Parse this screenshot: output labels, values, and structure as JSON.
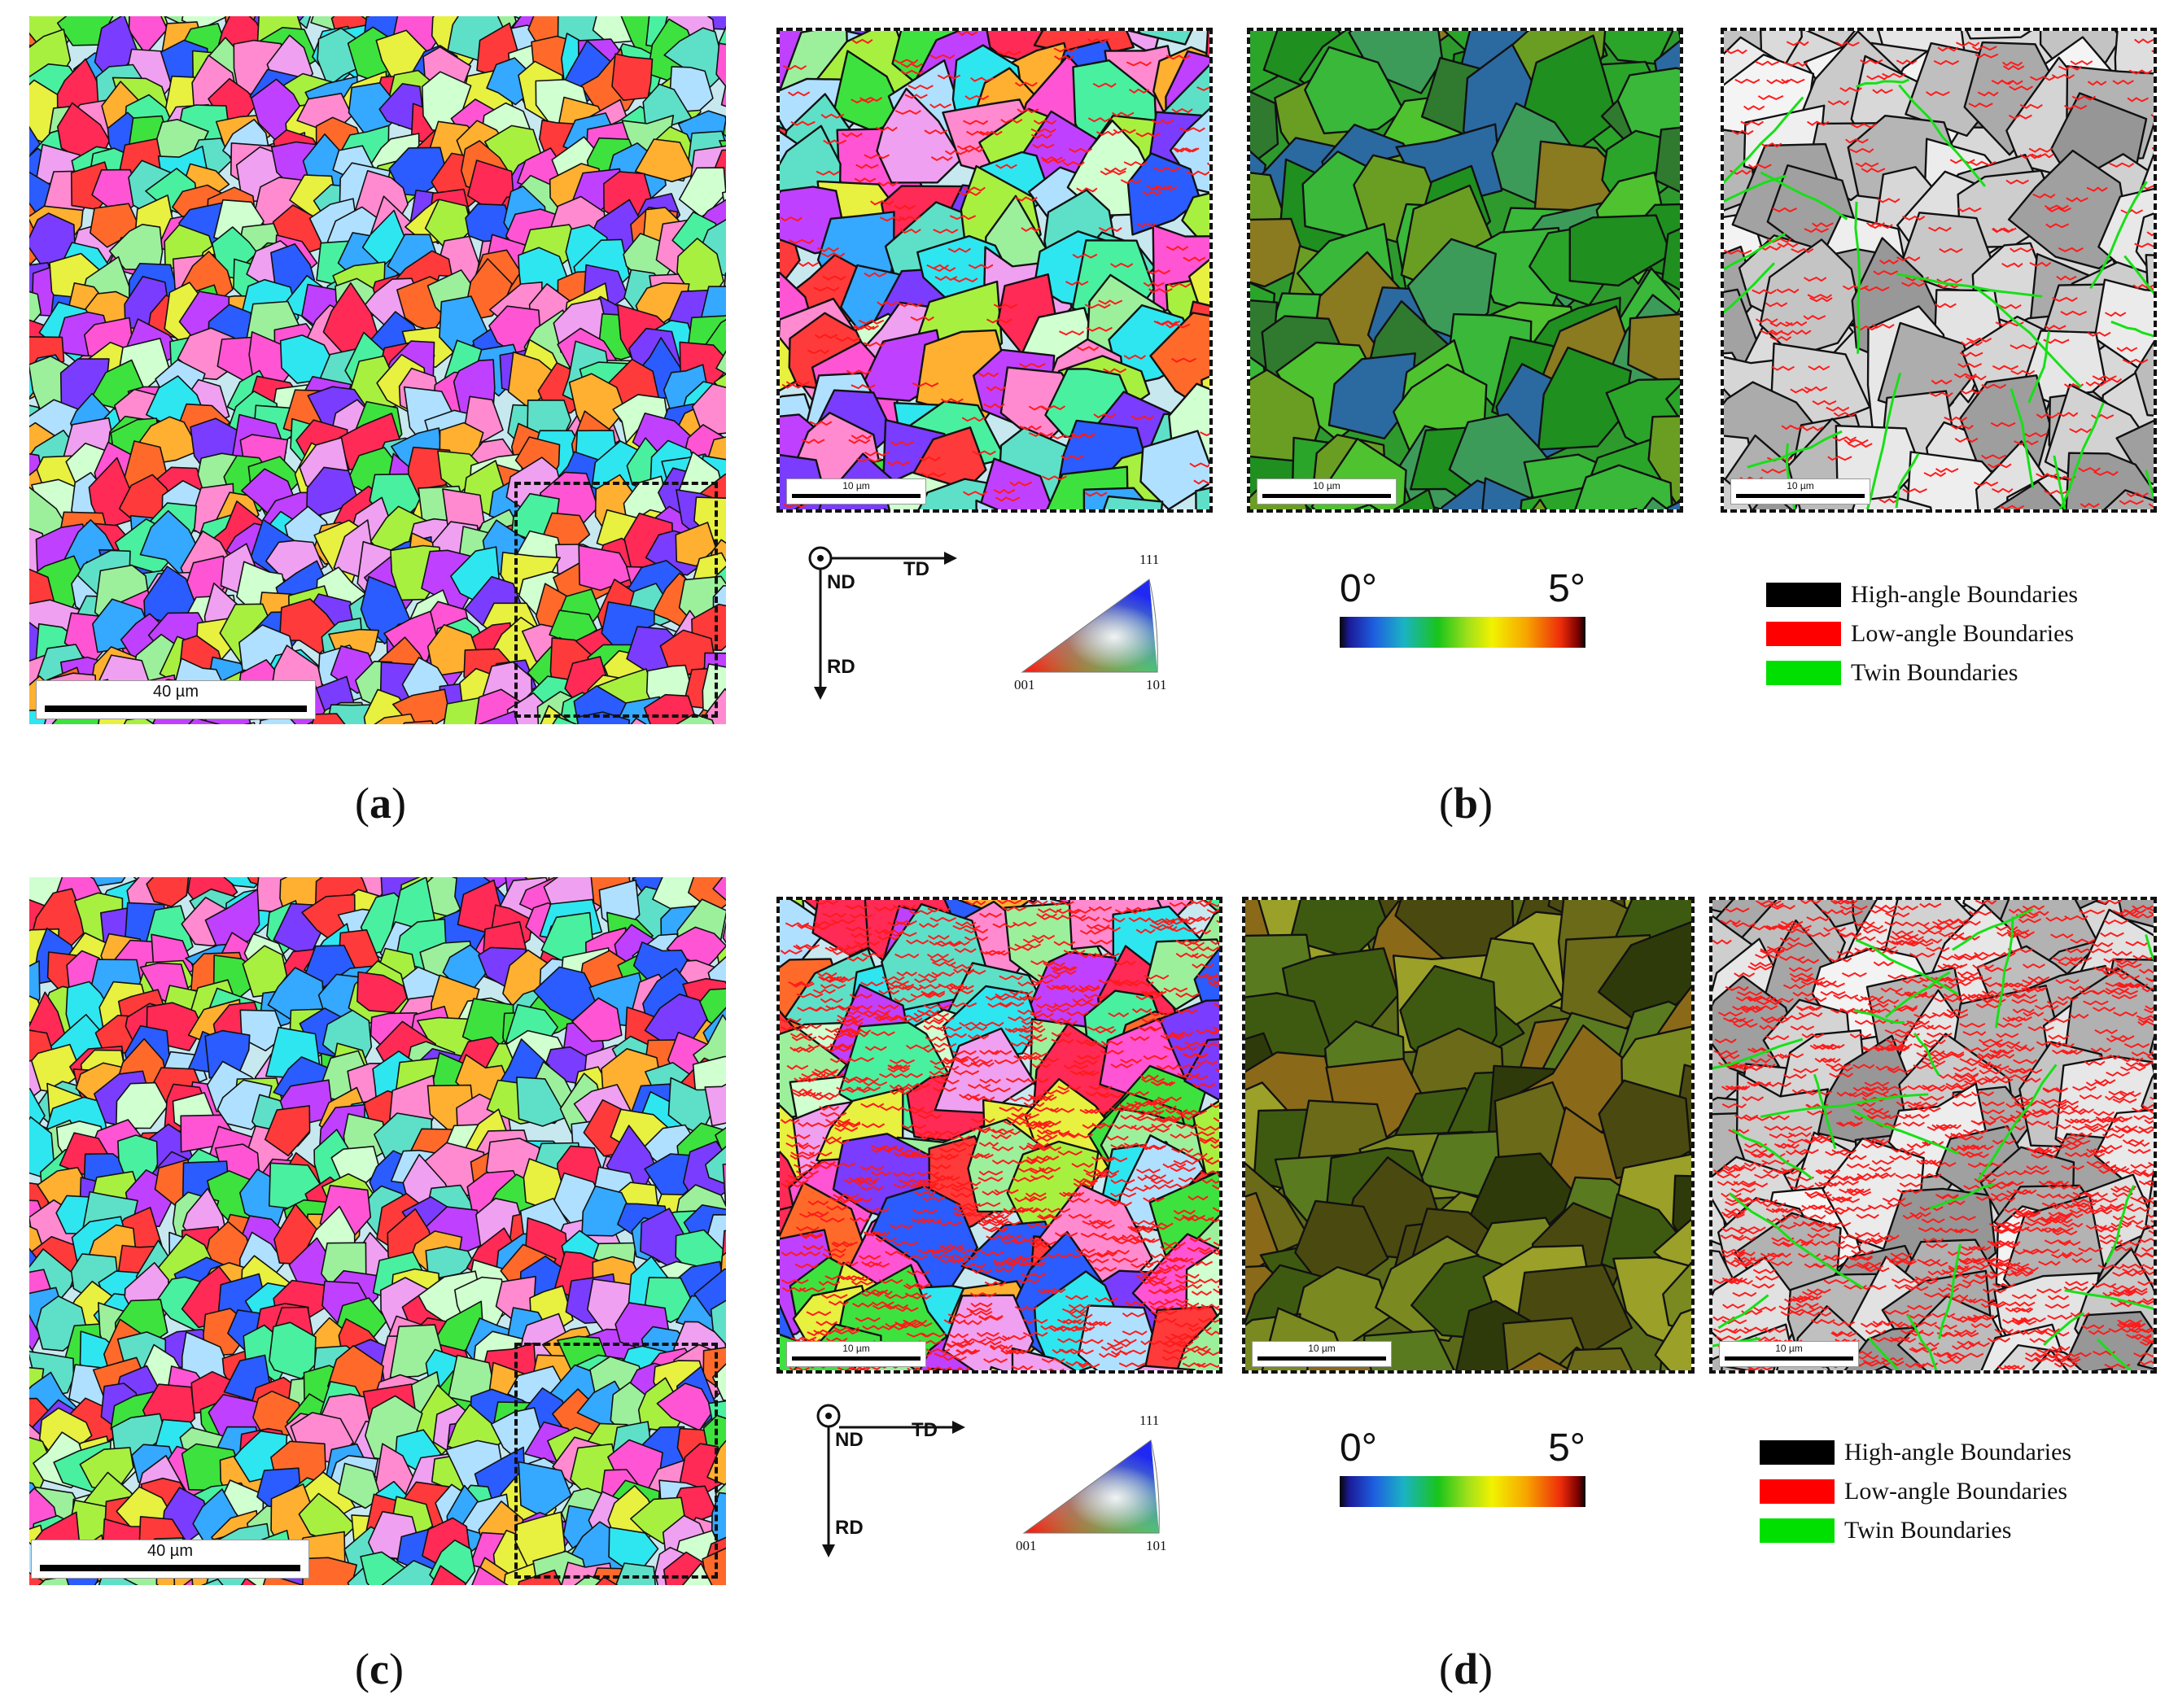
{
  "scale_bars": {
    "overview": "40 µm",
    "zoom": "10 µm"
  },
  "captions": {
    "a": "a",
    "b": "b",
    "c": "c",
    "d": "d"
  },
  "axes": {
    "nd": "ND",
    "td": "TD",
    "rd": "RD"
  },
  "ipf_key": {
    "top": "111",
    "left": "001",
    "right": "101"
  },
  "kam_colorbar": {
    "min_label": "0°",
    "max_label": "5°"
  },
  "boundary_legend": [
    {
      "label": "High-angle Boundaries",
      "color": "#000000"
    },
    {
      "label": "Low-angle Boundaries",
      "color": "#ff0000"
    },
    {
      "label": "Twin Boundaries",
      "color": "#00e000"
    }
  ],
  "colors": {
    "high_angle": "#000000",
    "low_angle": "#ff0000",
    "twin": "#00e000"
  }
}
